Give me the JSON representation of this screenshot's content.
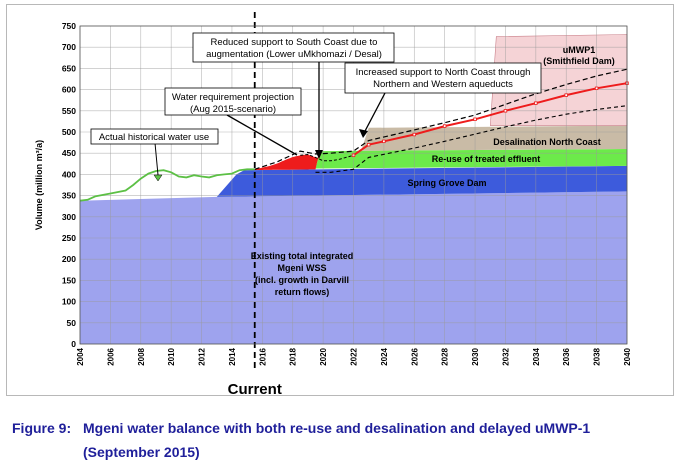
{
  "chart_data": {
    "type": "area",
    "ylabel": "Volume (million m³/a)",
    "current_label": "Current",
    "current_year": 2015.5,
    "xlim": [
      2004,
      2040
    ],
    "ylim": [
      0,
      750
    ],
    "x_ticks": [
      "2004",
      "2006",
      "2008",
      "2010",
      "2012",
      "2014",
      "2016",
      "2018",
      "2020",
      "2022",
      "2024",
      "2026",
      "2028",
      "2030",
      "2032",
      "2034",
      "2036",
      "2038",
      "2040"
    ],
    "y_ticks": [
      "0",
      "50",
      "100",
      "150",
      "200",
      "250",
      "300",
      "350",
      "400",
      "450",
      "500",
      "550",
      "600",
      "650",
      "700",
      "750"
    ],
    "grid": true,
    "series": [
      {
        "name": "Existing total integrated Mgeni WSS (incl. growth in Darvill return flows)",
        "color": "#9ea3ee",
        "lower": [
          [
            2004,
            0
          ],
          [
            2040,
            0
          ]
        ],
        "upper": [
          [
            2004,
            338
          ],
          [
            2013,
            347
          ],
          [
            2040,
            360
          ]
        ]
      },
      {
        "name": "Spring Grove Dam",
        "color": "#3d5bdc",
        "lower": [
          [
            2013,
            347
          ],
          [
            2040,
            360
          ]
        ],
        "upper": [
          [
            2013,
            347
          ],
          [
            2014.3,
            400
          ],
          [
            2014.8,
            410
          ],
          [
            2040,
            420
          ]
        ]
      },
      {
        "name": "Re-use of treated effluent",
        "color": "#6cea4a",
        "lower": [
          [
            2019.5,
            414
          ],
          [
            2040,
            420
          ]
        ],
        "upper": [
          [
            2019.5,
            414
          ],
          [
            2019.8,
            455
          ],
          [
            2040,
            460
          ]
        ]
      },
      {
        "name": "Desalination North Coast",
        "color": "#c9bba6",
        "lower": [
          [
            2022.5,
            456
          ],
          [
            2040,
            460
          ]
        ],
        "upper": [
          [
            2022.5,
            456
          ],
          [
            2023,
            510
          ],
          [
            2040,
            515
          ]
        ]
      },
      {
        "name": "uMWP1 (Smithfield Dam)",
        "color": "#f5d3d6",
        "lower": [
          [
            2031,
            515
          ],
          [
            2040,
            515
          ]
        ],
        "upper": [
          [
            2031,
            515
          ],
          [
            2031.4,
            725
          ],
          [
            2040,
            730
          ]
        ]
      }
    ],
    "historical_use": {
      "name": "Actual historical water use",
      "color": "#5cc045",
      "points": [
        [
          2004,
          338
        ],
        [
          2004.5,
          340
        ],
        [
          2005,
          348
        ],
        [
          2006,
          355
        ],
        [
          2007,
          362
        ],
        [
          2007.5,
          375
        ],
        [
          2008,
          390
        ],
        [
          2008.5,
          402
        ],
        [
          2009,
          408
        ],
        [
          2009.5,
          410
        ],
        [
          2010,
          405
        ],
        [
          2010.5,
          395
        ],
        [
          2011,
          393
        ],
        [
          2011.5,
          398
        ],
        [
          2012,
          395
        ],
        [
          2012.5,
          393
        ],
        [
          2013,
          398
        ],
        [
          2013.5,
          400
        ],
        [
          2014,
          402
        ],
        [
          2014.5,
          410
        ],
        [
          2015,
          412
        ],
        [
          2015.5,
          412
        ]
      ]
    },
    "requirement_projection": {
      "name": "Water requirement projection (Aug 2015-scenario)",
      "points": [
        [
          2015.5,
          412
        ],
        [
          2016,
          416
        ],
        [
          2016.5,
          420
        ],
        [
          2017,
          426
        ],
        [
          2017.5,
          434
        ],
        [
          2018,
          441
        ],
        [
          2018.5,
          445
        ],
        [
          2019,
          447
        ],
        [
          2019.5,
          440
        ],
        [
          2020,
          432
        ],
        [
          2020.5,
          432
        ],
        [
          2021,
          435
        ],
        [
          2022,
          445
        ],
        [
          2023,
          470
        ],
        [
          2024,
          478
        ],
        [
          2026,
          494
        ],
        [
          2028,
          514
        ],
        [
          2030,
          530
        ],
        [
          2032,
          550
        ],
        [
          2034,
          568
        ],
        [
          2036,
          587
        ],
        [
          2038,
          603
        ],
        [
          2040,
          615
        ]
      ]
    },
    "projection_upper": [
      [
        2015.5,
        412
      ],
      [
        2017,
        430
      ],
      [
        2018.5,
        455
      ],
      [
        2019.5,
        448
      ],
      [
        2020.5,
        450
      ],
      [
        2022,
        455
      ],
      [
        2023,
        480
      ],
      [
        2026,
        505
      ],
      [
        2028,
        522
      ],
      [
        2030,
        540
      ],
      [
        2032,
        565
      ],
      [
        2034,
        590
      ],
      [
        2036,
        612
      ],
      [
        2038,
        632
      ],
      [
        2040,
        648
      ]
    ],
    "projection_lower": [
      [
        2019.5,
        405
      ],
      [
        2020.5,
        405
      ],
      [
        2022,
        412
      ],
      [
        2023,
        440
      ],
      [
        2026,
        462
      ],
      [
        2028,
        478
      ],
      [
        2030,
        495
      ],
      [
        2032,
        512
      ],
      [
        2034,
        528
      ],
      [
        2036,
        542
      ],
      [
        2038,
        553
      ],
      [
        2040,
        562
      ]
    ],
    "deficit_color": "#ee1c1c",
    "annotations": {
      "existing": [
        "Existing total integrated",
        "Mgeni WSS",
        "(incl. growth in Darvill",
        "return flows)"
      ],
      "spring_grove": "Spring Grove Dam",
      "reuse": "Re-use of treated effluent",
      "desal": "Desalination North Coast",
      "umwp": [
        "uMWP1",
        "(Smithfield Dam)"
      ],
      "historical": "Actual historical water use",
      "requirement": [
        "Water requirement projection",
        "(Aug 2015-scenario)"
      ],
      "reduced": [
        "Reduced support to South Coast due to",
        "augmentation (Lower uMkhomazi / Desal)"
      ],
      "increased": [
        "Increased support to North Coast through",
        "Northern and Western aqueducts"
      ]
    }
  },
  "caption": {
    "label": "Figure 9:",
    "title_line1": "Mgeni water balance with both re-use and desalination and delayed uMWP-1",
    "title_line2": "(September 2015)"
  }
}
